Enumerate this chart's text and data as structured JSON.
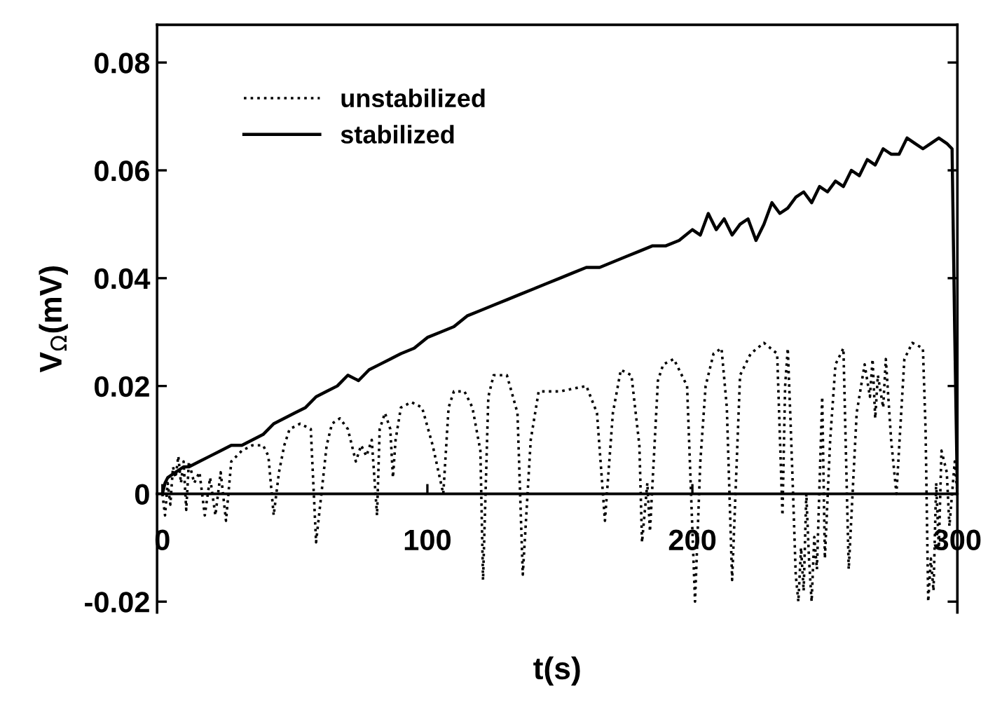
{
  "chart_data": {
    "type": "line",
    "xlabel": "t(s)",
    "ylabel": "V$_{Ω}$(mV)",
    "xlim": [
      -2,
      300
    ],
    "ylim": [
      -0.022,
      0.087
    ],
    "xticks": [
      0,
      100,
      200,
      300
    ],
    "yticks": [
      -0.02,
      0,
      0.02,
      0.04,
      0.06,
      0.08
    ],
    "grid": false,
    "legend": "top left",
    "series": [
      {
        "name": "unstabilized",
        "color": "#000000",
        "line_style": "dotted",
        "x": [
          0,
          1,
          2,
          3,
          4,
          5,
          6,
          7,
          8,
          9,
          10,
          12,
          14,
          16,
          18,
          20,
          22,
          24,
          26,
          30,
          34,
          38,
          40,
          42,
          44,
          46,
          48,
          52,
          56,
          58,
          60,
          62,
          64,
          67,
          70,
          73,
          75,
          77,
          79,
          81,
          82,
          84,
          86,
          87,
          88,
          90,
          94,
          98,
          102,
          106,
          108,
          110,
          114,
          117,
          120,
          121,
          123,
          125,
          130,
          134,
          136,
          139,
          142,
          150,
          160,
          164,
          167,
          170,
          173,
          177,
          180,
          181,
          183,
          184,
          187,
          189,
          193,
          198,
          201,
          203,
          205,
          208,
          211,
          213,
          215,
          218,
          222,
          227,
          232,
          234,
          235,
          236,
          237,
          238,
          239,
          240,
          241,
          242,
          243,
          244,
          245,
          246,
          247,
          248,
          249,
          250,
          252,
          254,
          257,
          259,
          262,
          265,
          267,
          268,
          269,
          270,
          272,
          273,
          275,
          277,
          280,
          283,
          287,
          288,
          289,
          290,
          291,
          292,
          293,
          294,
          296,
          297,
          299,
          300
        ],
        "values": [
          0.0,
          -0.004,
          0.002,
          -0.002,
          0.005,
          0.003,
          0.007,
          0.002,
          0.006,
          -0.003,
          0.006,
          0.002,
          0.004,
          -0.004,
          0.003,
          -0.004,
          0.004,
          -0.005,
          0.006,
          0.008,
          0.009,
          0.009,
          0.007,
          -0.004,
          0.004,
          0.009,
          0.012,
          0.013,
          0.012,
          -0.009,
          0.0,
          0.009,
          0.013,
          0.014,
          0.012,
          0.006,
          0.009,
          0.007,
          0.01,
          -0.004,
          0.012,
          0.015,
          0.012,
          0.003,
          0.01,
          0.016,
          0.017,
          0.016,
          0.009,
          0.0,
          0.016,
          0.019,
          0.019,
          0.016,
          0.008,
          -0.016,
          0.018,
          0.022,
          0.022,
          0.015,
          -0.015,
          0.01,
          0.019,
          0.019,
          0.02,
          0.015,
          -0.005,
          0.015,
          0.023,
          0.022,
          0.009,
          -0.009,
          0.002,
          -0.007,
          0.021,
          0.024,
          0.025,
          0.02,
          -0.02,
          0.006,
          0.02,
          0.026,
          0.027,
          0.016,
          -0.016,
          0.022,
          0.026,
          0.028,
          0.026,
          -0.004,
          0.02,
          0.027,
          0.014,
          0.0,
          -0.015,
          -0.02,
          -0.01,
          -0.018,
          0.0,
          -0.012,
          -0.02,
          -0.008,
          -0.014,
          0.002,
          0.018,
          -0.012,
          0.01,
          0.024,
          0.027,
          -0.014,
          0.015,
          0.024,
          0.018,
          0.025,
          0.014,
          0.022,
          0.016,
          0.025,
          0.01,
          0.0,
          0.025,
          0.028,
          0.027,
          0.012,
          -0.02,
          -0.012,
          -0.018,
          0.002,
          -0.01,
          0.008,
          0.004,
          -0.006,
          0.006,
          0.0
        ]
      },
      {
        "name": "stabilized",
        "color": "#000000",
        "line_style": "solid",
        "x": [
          0,
          1,
          2,
          5,
          8,
          10,
          14,
          18,
          22,
          26,
          30,
          34,
          38,
          42,
          46,
          50,
          54,
          58,
          62,
          66,
          70,
          74,
          78,
          82,
          86,
          90,
          95,
          100,
          105,
          110,
          115,
          120,
          125,
          130,
          135,
          140,
          145,
          150,
          155,
          160,
          165,
          170,
          175,
          180,
          185,
          190,
          195,
          200,
          203,
          206,
          209,
          212,
          215,
          218,
          221,
          224,
          227,
          230,
          233,
          236,
          239,
          242,
          245,
          248,
          251,
          254,
          257,
          260,
          263,
          266,
          269,
          272,
          275,
          278,
          281,
          284,
          287,
          290,
          293,
          296,
          298,
          299,
          300
        ],
        "values": [
          0.0,
          0.002,
          0.003,
          0.004,
          0.005,
          0.005,
          0.006,
          0.007,
          0.008,
          0.009,
          0.009,
          0.01,
          0.011,
          0.013,
          0.014,
          0.015,
          0.016,
          0.018,
          0.019,
          0.02,
          0.022,
          0.021,
          0.023,
          0.024,
          0.025,
          0.026,
          0.027,
          0.029,
          0.03,
          0.031,
          0.033,
          0.034,
          0.035,
          0.036,
          0.037,
          0.038,
          0.039,
          0.04,
          0.041,
          0.042,
          0.042,
          0.043,
          0.044,
          0.045,
          0.046,
          0.046,
          0.047,
          0.049,
          0.048,
          0.052,
          0.049,
          0.051,
          0.048,
          0.05,
          0.051,
          0.047,
          0.05,
          0.054,
          0.052,
          0.053,
          0.055,
          0.056,
          0.054,
          0.057,
          0.056,
          0.058,
          0.057,
          0.06,
          0.059,
          0.062,
          0.061,
          0.064,
          0.063,
          0.063,
          0.066,
          0.065,
          0.064,
          0.065,
          0.066,
          0.065,
          0.064,
          0.03,
          0.0
        ]
      }
    ]
  }
}
